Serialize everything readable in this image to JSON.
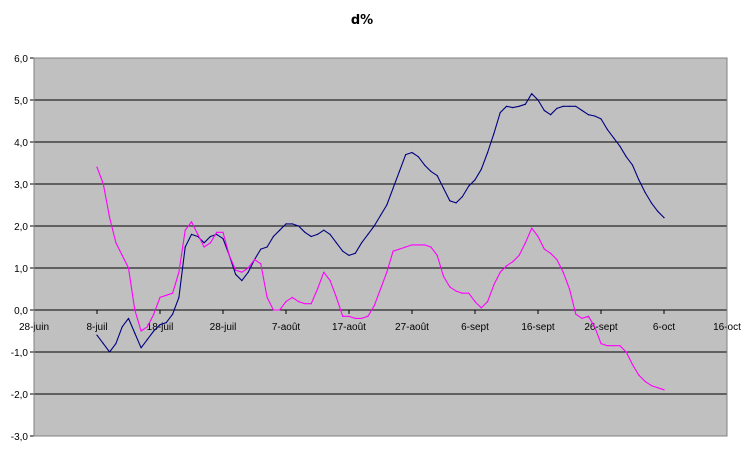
{
  "chart_data": {
    "type": "line",
    "title": "d%",
    "xlabel": "",
    "ylabel": "",
    "grid": true,
    "legend": "none",
    "ylim": [
      -3.0,
      6.0
    ],
    "y_ticks": [
      "-3,0",
      "-2,0",
      "-1,0",
      "0,0",
      "1,0",
      "2,0",
      "3,0",
      "4,0",
      "5,0",
      "6,0"
    ],
    "y_tick_values": [
      -3,
      -2,
      -1,
      0,
      1,
      2,
      3,
      4,
      5,
      6
    ],
    "xlim": [
      "2008-06-28",
      "2008-10-16"
    ],
    "x_ticks": [
      "28-juin",
      "8-juil",
      "18-juil",
      "28-juil",
      "7-août",
      "17-août",
      "27-août",
      "6-sept",
      "16-sept",
      "26-sept",
      "6-oct",
      "16-oct"
    ],
    "x_tick_values": [
      "2008-06-28",
      "2008-07-08",
      "2008-07-18",
      "2008-07-28",
      "2008-08-07",
      "2008-08-17",
      "2008-08-27",
      "2008-09-06",
      "2008-09-16",
      "2008-09-26",
      "2008-10-06",
      "2008-10-16"
    ],
    "plot_background": "#c0c0c0",
    "series": [
      {
        "color": "#000080",
        "points": [
          [
            "2008-07-08",
            -0.6
          ],
          [
            "2008-07-09",
            -0.8
          ],
          [
            "2008-07-10",
            -1.0
          ],
          [
            "2008-07-11",
            -0.8
          ],
          [
            "2008-07-12",
            -0.4
          ],
          [
            "2008-07-13",
            -0.2
          ],
          [
            "2008-07-14",
            -0.55
          ],
          [
            "2008-07-15",
            -0.9
          ],
          [
            "2008-07-16",
            -0.7
          ],
          [
            "2008-07-17",
            -0.5
          ],
          [
            "2008-07-18",
            -0.35
          ],
          [
            "2008-07-19",
            -0.3
          ],
          [
            "2008-07-20",
            -0.1
          ],
          [
            "2008-07-21",
            0.3
          ],
          [
            "2008-07-22",
            1.5
          ],
          [
            "2008-07-23",
            1.8
          ],
          [
            "2008-07-24",
            1.75
          ],
          [
            "2008-07-25",
            1.6
          ],
          [
            "2008-07-26",
            1.75
          ],
          [
            "2008-07-27",
            1.8
          ],
          [
            "2008-07-28",
            1.7
          ],
          [
            "2008-07-29",
            1.3
          ],
          [
            "2008-07-30",
            0.85
          ],
          [
            "2008-07-31",
            0.7
          ],
          [
            "2008-08-01",
            0.9
          ],
          [
            "2008-08-02",
            1.2
          ],
          [
            "2008-08-03",
            1.45
          ],
          [
            "2008-08-04",
            1.5
          ],
          [
            "2008-08-05",
            1.75
          ],
          [
            "2008-08-06",
            1.9
          ],
          [
            "2008-08-07",
            2.05
          ],
          [
            "2008-08-08",
            2.05
          ],
          [
            "2008-08-09",
            2.0
          ],
          [
            "2008-08-10",
            1.85
          ],
          [
            "2008-08-11",
            1.75
          ],
          [
            "2008-08-12",
            1.8
          ],
          [
            "2008-08-13",
            1.9
          ],
          [
            "2008-08-14",
            1.8
          ],
          [
            "2008-08-15",
            1.6
          ],
          [
            "2008-08-16",
            1.4
          ],
          [
            "2008-08-17",
            1.3
          ],
          [
            "2008-08-18",
            1.35
          ],
          [
            "2008-08-19",
            1.6
          ],
          [
            "2008-08-20",
            1.8
          ],
          [
            "2008-08-21",
            2.0
          ],
          [
            "2008-08-22",
            2.25
          ],
          [
            "2008-08-23",
            2.5
          ],
          [
            "2008-08-24",
            2.9
          ],
          [
            "2008-08-25",
            3.3
          ],
          [
            "2008-08-26",
            3.7
          ],
          [
            "2008-08-27",
            3.75
          ],
          [
            "2008-08-28",
            3.65
          ],
          [
            "2008-08-29",
            3.45
          ],
          [
            "2008-08-30",
            3.3
          ],
          [
            "2008-08-31",
            3.2
          ],
          [
            "2008-09-01",
            2.9
          ],
          [
            "2008-09-02",
            2.6
          ],
          [
            "2008-09-03",
            2.55
          ],
          [
            "2008-09-04",
            2.7
          ],
          [
            "2008-09-05",
            2.95
          ],
          [
            "2008-09-06",
            3.1
          ],
          [
            "2008-09-07",
            3.35
          ],
          [
            "2008-09-08",
            3.75
          ],
          [
            "2008-09-09",
            4.2
          ],
          [
            "2008-09-10",
            4.7
          ],
          [
            "2008-09-11",
            4.85
          ],
          [
            "2008-09-12",
            4.82
          ],
          [
            "2008-09-13",
            4.85
          ],
          [
            "2008-09-14",
            4.9
          ],
          [
            "2008-09-15",
            5.15
          ],
          [
            "2008-09-16",
            5.0
          ],
          [
            "2008-09-17",
            4.75
          ],
          [
            "2008-09-18",
            4.65
          ],
          [
            "2008-09-19",
            4.8
          ],
          [
            "2008-09-20",
            4.85
          ],
          [
            "2008-09-21",
            4.85
          ],
          [
            "2008-09-22",
            4.85
          ],
          [
            "2008-09-23",
            4.75
          ],
          [
            "2008-09-24",
            4.65
          ],
          [
            "2008-09-25",
            4.62
          ],
          [
            "2008-09-26",
            4.55
          ],
          [
            "2008-09-27",
            4.3
          ],
          [
            "2008-09-28",
            4.1
          ],
          [
            "2008-09-29",
            3.9
          ],
          [
            "2008-09-30",
            3.65
          ],
          [
            "2008-10-01",
            3.45
          ],
          [
            "2008-10-02",
            3.1
          ],
          [
            "2008-10-03",
            2.8
          ],
          [
            "2008-10-04",
            2.55
          ],
          [
            "2008-10-05",
            2.35
          ],
          [
            "2008-10-06",
            2.2
          ]
        ]
      },
      {
        "color": "#ff00ff",
        "points": [
          [
            "2008-07-08",
            3.4
          ],
          [
            "2008-07-09",
            3.0
          ],
          [
            "2008-07-10",
            2.2
          ],
          [
            "2008-07-11",
            1.6
          ],
          [
            "2008-07-12",
            1.3
          ],
          [
            "2008-07-13",
            1.0
          ],
          [
            "2008-07-14",
            0.0
          ],
          [
            "2008-07-15",
            -0.5
          ],
          [
            "2008-07-16",
            -0.4
          ],
          [
            "2008-07-17",
            -0.1
          ],
          [
            "2008-07-18",
            0.3
          ],
          [
            "2008-07-19",
            0.35
          ],
          [
            "2008-07-20",
            0.4
          ],
          [
            "2008-07-21",
            0.9
          ],
          [
            "2008-07-22",
            1.9
          ],
          [
            "2008-07-23",
            2.1
          ],
          [
            "2008-07-24",
            1.8
          ],
          [
            "2008-07-25",
            1.5
          ],
          [
            "2008-07-26",
            1.6
          ],
          [
            "2008-07-27",
            1.85
          ],
          [
            "2008-07-28",
            1.85
          ],
          [
            "2008-07-29",
            1.3
          ],
          [
            "2008-07-30",
            0.95
          ],
          [
            "2008-07-31",
            0.9
          ],
          [
            "2008-08-01",
            1.0
          ],
          [
            "2008-08-02",
            1.2
          ],
          [
            "2008-08-03",
            1.1
          ],
          [
            "2008-08-04",
            0.3
          ],
          [
            "2008-08-05",
            0.0
          ],
          [
            "2008-08-06",
            0.0
          ],
          [
            "2008-08-07",
            0.2
          ],
          [
            "2008-08-08",
            0.3
          ],
          [
            "2008-08-09",
            0.2
          ],
          [
            "2008-08-10",
            0.15
          ],
          [
            "2008-08-11",
            0.15
          ],
          [
            "2008-08-12",
            0.5
          ],
          [
            "2008-08-13",
            0.9
          ],
          [
            "2008-08-14",
            0.7
          ],
          [
            "2008-08-15",
            0.3
          ],
          [
            "2008-08-16",
            -0.15
          ],
          [
            "2008-08-17",
            -0.15
          ],
          [
            "2008-08-18",
            -0.2
          ],
          [
            "2008-08-19",
            -0.2
          ],
          [
            "2008-08-20",
            -0.15
          ],
          [
            "2008-08-21",
            0.1
          ],
          [
            "2008-08-22",
            0.5
          ],
          [
            "2008-08-23",
            0.9
          ],
          [
            "2008-08-24",
            1.4
          ],
          [
            "2008-08-25",
            1.45
          ],
          [
            "2008-08-26",
            1.5
          ],
          [
            "2008-08-27",
            1.55
          ],
          [
            "2008-08-28",
            1.55
          ],
          [
            "2008-08-29",
            1.55
          ],
          [
            "2008-08-30",
            1.5
          ],
          [
            "2008-08-31",
            1.3
          ],
          [
            "2008-09-01",
            0.8
          ],
          [
            "2008-09-02",
            0.55
          ],
          [
            "2008-09-03",
            0.45
          ],
          [
            "2008-09-04",
            0.4
          ],
          [
            "2008-09-05",
            0.4
          ],
          [
            "2008-09-06",
            0.2
          ],
          [
            "2008-09-07",
            0.05
          ],
          [
            "2008-09-08",
            0.2
          ],
          [
            "2008-09-09",
            0.6
          ],
          [
            "2008-09-10",
            0.9
          ],
          [
            "2008-09-11",
            1.05
          ],
          [
            "2008-09-12",
            1.15
          ],
          [
            "2008-09-13",
            1.3
          ],
          [
            "2008-09-14",
            1.6
          ],
          [
            "2008-09-15",
            1.95
          ],
          [
            "2008-09-16",
            1.75
          ],
          [
            "2008-09-17",
            1.45
          ],
          [
            "2008-09-18",
            1.35
          ],
          [
            "2008-09-19",
            1.2
          ],
          [
            "2008-09-20",
            0.9
          ],
          [
            "2008-09-21",
            0.5
          ],
          [
            "2008-09-22",
            -0.1
          ],
          [
            "2008-09-23",
            -0.2
          ],
          [
            "2008-09-24",
            -0.15
          ],
          [
            "2008-09-25",
            -0.4
          ],
          [
            "2008-09-26",
            -0.8
          ],
          [
            "2008-09-27",
            -0.85
          ],
          [
            "2008-09-28",
            -0.85
          ],
          [
            "2008-09-29",
            -0.85
          ],
          [
            "2008-09-30",
            -1.0
          ],
          [
            "2008-10-01",
            -1.3
          ],
          [
            "2008-10-02",
            -1.55
          ],
          [
            "2008-10-03",
            -1.7
          ],
          [
            "2008-10-04",
            -1.8
          ],
          [
            "2008-10-05",
            -1.85
          ],
          [
            "2008-10-06",
            -1.9
          ]
        ]
      }
    ]
  }
}
